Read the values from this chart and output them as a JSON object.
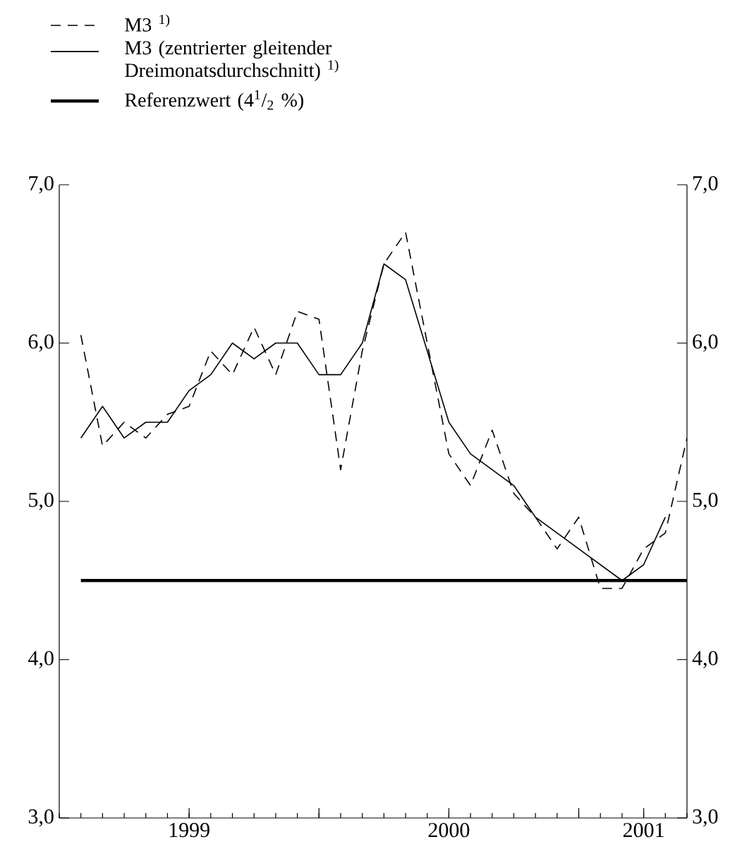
{
  "chart_data": {
    "type": "line",
    "x": [
      "1999-01",
      "1999-02",
      "1999-03",
      "1999-04",
      "1999-05",
      "1999-06",
      "1999-07",
      "1999-08",
      "1999-09",
      "1999-10",
      "1999-11",
      "1999-12",
      "2000-01",
      "2000-02",
      "2000-03",
      "2000-04",
      "2000-05",
      "2000-06",
      "2000-07",
      "2000-08",
      "2000-09",
      "2000-10",
      "2000-11",
      "2000-12",
      "2001-01",
      "2001-02",
      "2001-03",
      "2001-04",
      "2001-05"
    ],
    "series": [
      {
        "name": "M3 $^{1)}$",
        "color": "#000000",
        "line_style": "dashed",
        "values": [
          6.05,
          5.35,
          5.5,
          5.4,
          5.55,
          5.6,
          5.95,
          5.8,
          6.1,
          5.8,
          6.2,
          6.15,
          5.2,
          5.95,
          6.5,
          6.7,
          6.0,
          5.3,
          5.1,
          5.45,
          5.05,
          4.9,
          4.7,
          4.9,
          4.45,
          4.45,
          4.7,
          4.8,
          5.4
        ]
      },
      {
        "name": "M3 (zentrierter gleitender Dreimonatsdurchschnitt) $^{1)}$",
        "color": "#000000",
        "line_style": "solid",
        "x": [
          "1999-01",
          "1999-02",
          "1999-03",
          "1999-04",
          "1999-05",
          "1999-06",
          "1999-07",
          "1999-08",
          "1999-09",
          "1999-10",
          "1999-11",
          "1999-12",
          "2000-01",
          "2000-02",
          "2000-03",
          "2000-04",
          "2000-05",
          "2000-06",
          "2000-07",
          "2000-08",
          "2000-09",
          "2000-10",
          "2000-11",
          "2000-12",
          "2001-01",
          "2001-02",
          "2001-03",
          "2001-04"
        ],
        "values": [
          5.4,
          5.6,
          5.4,
          5.5,
          5.5,
          5.7,
          5.8,
          6.0,
          5.9,
          6.0,
          6.0,
          5.8,
          5.8,
          6.0,
          6.5,
          6.4,
          5.95,
          5.5,
          5.3,
          5.2,
          5.1,
          4.9,
          4.8,
          4.7,
          4.6,
          4.5,
          4.6,
          4.9
        ]
      }
    ],
    "ref_lines": [
      {
        "axis": "y",
        "value": 4.5,
        "label": "Referenzwert (4$^{1}$/$_{2}$ %)",
        "color": "#000000"
      }
    ],
    "xlim": [
      "1998-12",
      "2001-05"
    ],
    "xticks": [
      {
        "value": "1999-06",
        "label": "1999"
      },
      {
        "value": "1999-12",
        "label": null
      },
      {
        "value": "2000-06",
        "label": "2000"
      },
      {
        "value": "2000-12",
        "label": null
      },
      {
        "value": "2001-03",
        "label": "2001"
      }
    ],
    "ylim": [
      3,
      7
    ],
    "yticks": [
      {
        "value": 3,
        "label": "3,0"
      },
      {
        "value": 4,
        "label": "4,0"
      },
      {
        "value": 5,
        "label": "5,0"
      },
      {
        "value": 6,
        "label": "6,0"
      },
      {
        "value": 7,
        "label": "7,0"
      }
    ],
    "y2lim": [
      3,
      7
    ],
    "y2ticks": [
      {
        "value": 3,
        "label": "3,0"
      },
      {
        "value": 4,
        "label": "4,0"
      },
      {
        "value": 5,
        "label": "5,0"
      },
      {
        "value": 6,
        "label": "6,0"
      },
      {
        "value": 7,
        "label": "7,0"
      }
    ],
    "legend": "top left",
    "grid": false
  }
}
